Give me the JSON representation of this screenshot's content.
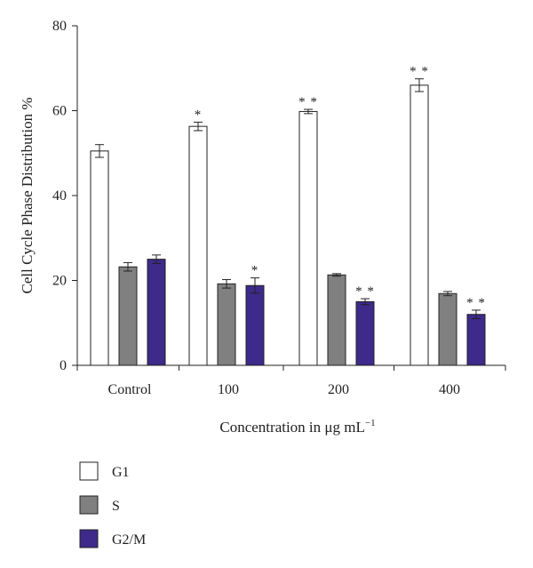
{
  "chart_data": {
    "type": "bar",
    "categories": [
      "Control",
      "100",
      "200",
      "400"
    ],
    "xlabel": "Concentration in μg mL",
    "xlabel_superscript": "−1",
    "ylabel": "Cell Cycle Phase Distribution %",
    "ylim": [
      0,
      80
    ],
    "yticks": [
      0,
      20,
      40,
      60,
      80
    ],
    "grid": false,
    "legend_position": "bottom-left",
    "series": [
      {
        "name": "G1",
        "color": "#ffffff",
        "values": [
          50.5,
          56.3,
          59.8,
          66.0
        ],
        "errors": [
          1.5,
          1.0,
          0.5,
          1.5
        ],
        "significance": [
          "",
          "*",
          "**",
          "**"
        ]
      },
      {
        "name": "S",
        "color": "#808080",
        "values": [
          23.2,
          19.2,
          21.3,
          16.9
        ],
        "errors": [
          1.0,
          1.0,
          0.3,
          0.5
        ],
        "significance": [
          "",
          "",
          "",
          ""
        ]
      },
      {
        "name": "G2/M",
        "color": "#3d2a8a",
        "values": [
          25.0,
          18.8,
          15.0,
          12.0
        ],
        "errors": [
          1.0,
          1.8,
          0.7,
          1.0
        ],
        "significance": [
          "",
          "*",
          "**",
          "**"
        ]
      }
    ]
  }
}
